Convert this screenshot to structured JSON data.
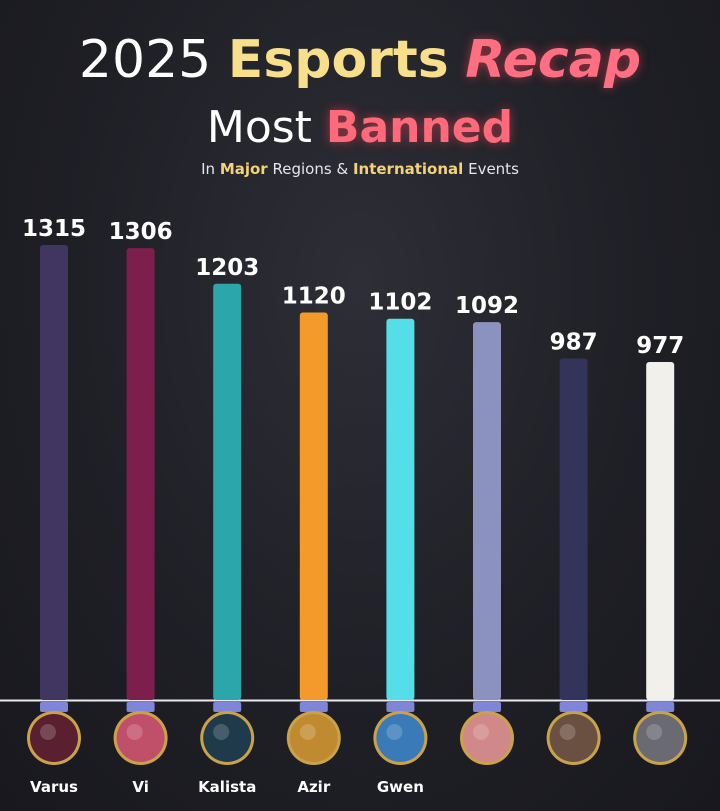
{
  "title": {
    "year": "2025",
    "esports": "Esports",
    "recap": "Recap",
    "most": "Most",
    "banned": "Banned"
  },
  "subtitle": {
    "prefix": "In",
    "major": "Major",
    "regions": "Regions",
    "amp": "&",
    "international": "International",
    "events": "Events"
  },
  "chart_data": {
    "type": "bar",
    "title": "2025 Esports Recap Most Banned",
    "subtitle": "In Major Regions & International Events",
    "categories": [
      "Varus",
      "Vi",
      "Kalista",
      "Azir",
      "Gwen",
      "",
      "",
      ""
    ],
    "values": [
      1315,
      1306,
      1203,
      1120,
      1102,
      1092,
      987,
      977
    ],
    "data_labels": [
      "1315",
      "1306",
      "1203",
      "1120",
      "1102",
      "1092",
      "987",
      "977"
    ],
    "bar_colors": [
      "#40365f",
      "#7d1f4c",
      "#2ba7ac",
      "#f39a2a",
      "#55dde8",
      "#8c92bf",
      "#33345a",
      "#f1f0ea"
    ],
    "avatar_colors": [
      "#5a2030",
      "#c0506a",
      "#1f3a4a",
      "#c08a30",
      "#3a7ab8",
      "#d08888",
      "#6a5040",
      "#6a6a72"
    ],
    "ylim": [
      0,
      1400
    ],
    "xlabel": "",
    "ylabel": "",
    "grid": false,
    "legend": "none"
  }
}
